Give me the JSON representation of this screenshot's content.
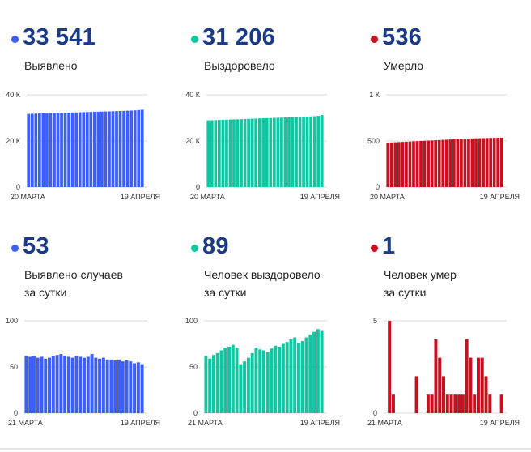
{
  "colors": {
    "blue": "#3b5ff7",
    "green": "#0fc7a0",
    "red": "#c8101e",
    "number": "#1a3a8a"
  },
  "panels": [
    {
      "value": "33 541",
      "label_lines": [
        "Выявлено"
      ],
      "dot_color": "#3b5ff7"
    },
    {
      "value": "31 206",
      "label_lines": [
        "Выздоровело"
      ],
      "dot_color": "#0fc7a0"
    },
    {
      "value": "536",
      "label_lines": [
        "Умерло"
      ],
      "dot_color": "#c8101e"
    },
    {
      "value": "53",
      "label_lines": [
        "Выявлено случаев",
        "за сутки"
      ],
      "dot_color": "#3b5ff7"
    },
    {
      "value": "89",
      "label_lines": [
        "Человек выздоровело",
        "за сутки"
      ],
      "dot_color": "#0fc7a0"
    },
    {
      "value": "1",
      "label_lines": [
        "Человек умер",
        "за сутки"
      ],
      "dot_color": "#c8101e"
    }
  ],
  "chart_data": [
    {
      "type": "bar",
      "title": "",
      "color": "#3b5ff7",
      "x_start_label": "20 МАРТА",
      "x_end_label": "19 АПРЕЛЯ",
      "ylim": [
        0,
        40000
      ],
      "ytick_values": [
        0,
        20000,
        40000
      ],
      "ytick_labels": [
        "0",
        "20 К",
        "40 К"
      ],
      "values": [
        31700,
        31770,
        31830,
        31880,
        31930,
        31980,
        32030,
        32080,
        32130,
        32180,
        32230,
        32280,
        32330,
        32380,
        32430,
        32480,
        32530,
        32580,
        32630,
        32680,
        32730,
        32780,
        32830,
        32880,
        32930,
        32980,
        33030,
        33100,
        33170,
        33260,
        33380,
        33541
      ]
    },
    {
      "type": "bar",
      "title": "",
      "color": "#0fc7a0",
      "x_start_label": "20 МАРТА",
      "x_end_label": "19 АПРЕЛЯ",
      "ylim": [
        0,
        40000
      ],
      "ytick_values": [
        0,
        20000,
        40000
      ],
      "ytick_labels": [
        "0",
        "20 К",
        "40 К"
      ],
      "values": [
        28900,
        28960,
        29020,
        29080,
        29140,
        29200,
        29260,
        29320,
        29380,
        29440,
        29500,
        29560,
        29620,
        29680,
        29740,
        29800,
        29860,
        29920,
        29980,
        30040,
        30100,
        30160,
        30220,
        30280,
        30340,
        30400,
        30460,
        30520,
        30600,
        30700,
        30850,
        31206
      ]
    },
    {
      "type": "bar",
      "title": "",
      "color": "#c8101e",
      "x_start_label": "20 МАРТА",
      "x_end_label": "19 АПРЕЛЯ",
      "ylim": [
        0,
        1000
      ],
      "ytick_values": [
        0,
        500,
        1000
      ],
      "ytick_labels": [
        "0",
        "500",
        "1 К"
      ],
      "values": [
        482,
        484,
        486,
        488,
        490,
        492,
        494,
        496,
        498,
        500,
        502,
        504,
        506,
        508,
        510,
        512,
        514,
        516,
        518,
        520,
        522,
        524,
        526,
        528,
        529,
        530,
        531,
        532,
        533,
        534,
        535,
        536
      ]
    },
    {
      "type": "bar",
      "title": "",
      "color": "#3b5ff7",
      "x_start_label": "21 МАРТА",
      "x_end_label": "19 АПРЕЛЯ",
      "ylim": [
        0,
        100
      ],
      "ytick_values": [
        0,
        50,
        100
      ],
      "ytick_labels": [
        "0",
        "50",
        "100"
      ],
      "values": [
        62,
        61,
        62,
        60,
        61,
        59,
        60,
        62,
        63,
        64,
        62,
        61,
        60,
        62,
        61,
        60,
        61,
        64,
        60,
        59,
        60,
        58,
        58,
        57,
        58,
        56,
        57,
        56,
        54,
        55,
        53
      ]
    },
    {
      "type": "bar",
      "title": "",
      "color": "#0fc7a0",
      "x_start_label": "21 МАРТА",
      "x_end_label": "19 АПРЕЛЯ",
      "ylim": [
        0,
        100
      ],
      "ytick_values": [
        0,
        50,
        100
      ],
      "ytick_labels": [
        "0",
        "50",
        "100"
      ],
      "values": [
        62,
        59,
        63,
        65,
        68,
        71,
        72,
        74,
        71,
        53,
        56,
        60,
        65,
        71,
        69,
        68,
        66,
        70,
        73,
        72,
        75,
        77,
        80,
        82,
        76,
        78,
        82,
        85,
        88,
        91,
        89
      ]
    },
    {
      "type": "bar",
      "title": "",
      "color": "#c8101e",
      "x_start_label": "21 МАРТА",
      "x_end_label": "19 АПРЕЛЯ",
      "ylim": [
        0,
        5
      ],
      "ytick_values": [
        0,
        5
      ],
      "ytick_labels": [
        "0",
        "5"
      ],
      "values": [
        0,
        5,
        1,
        0,
        0,
        0,
        0,
        0,
        2,
        0,
        0,
        1,
        1,
        4,
        3,
        2,
        1,
        1,
        1,
        1,
        1,
        4,
        3,
        1,
        3,
        3,
        2,
        1,
        0,
        0,
        1
      ]
    }
  ]
}
